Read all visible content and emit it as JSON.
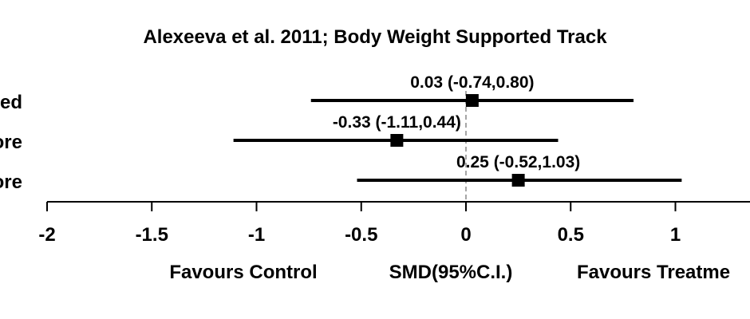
{
  "chart_data": {
    "type": "forest",
    "title": "Alexeeva et al. 2011; Body Weight Supported Track",
    "xlim": [
      -2,
      1.5
    ],
    "xticks": [
      -2,
      -1.5,
      -1,
      -0.5,
      0,
      0.5,
      1
    ],
    "xtick_labels": [
      "-2",
      "-1.5",
      "-1",
      "-0.5",
      "0",
      "0.5",
      "1"
    ],
    "reference_line": 0,
    "rows": [
      {
        "label": "ed",
        "estimate": 0.03,
        "lower": -0.74,
        "upper": 0.8,
        "ci_label": "0.03 (-0.74,0.80)"
      },
      {
        "label": "ore",
        "estimate": -0.33,
        "lower": -1.11,
        "upper": 0.44,
        "ci_label": "-0.33 (-1.11,0.44)"
      },
      {
        "label": "ore",
        "estimate": 0.25,
        "lower": -0.52,
        "upper": 1.03,
        "ci_label": "0.25 (-0.52,1.03)"
      }
    ],
    "footer": {
      "left": "Favours  Control",
      "center": "SMD(95%C.I.)",
      "right": "Favours  Treatme"
    },
    "colors": {
      "line": "#000000",
      "marker": "#000000",
      "reference": "#a6a6a6",
      "background": "#ffffff"
    }
  }
}
